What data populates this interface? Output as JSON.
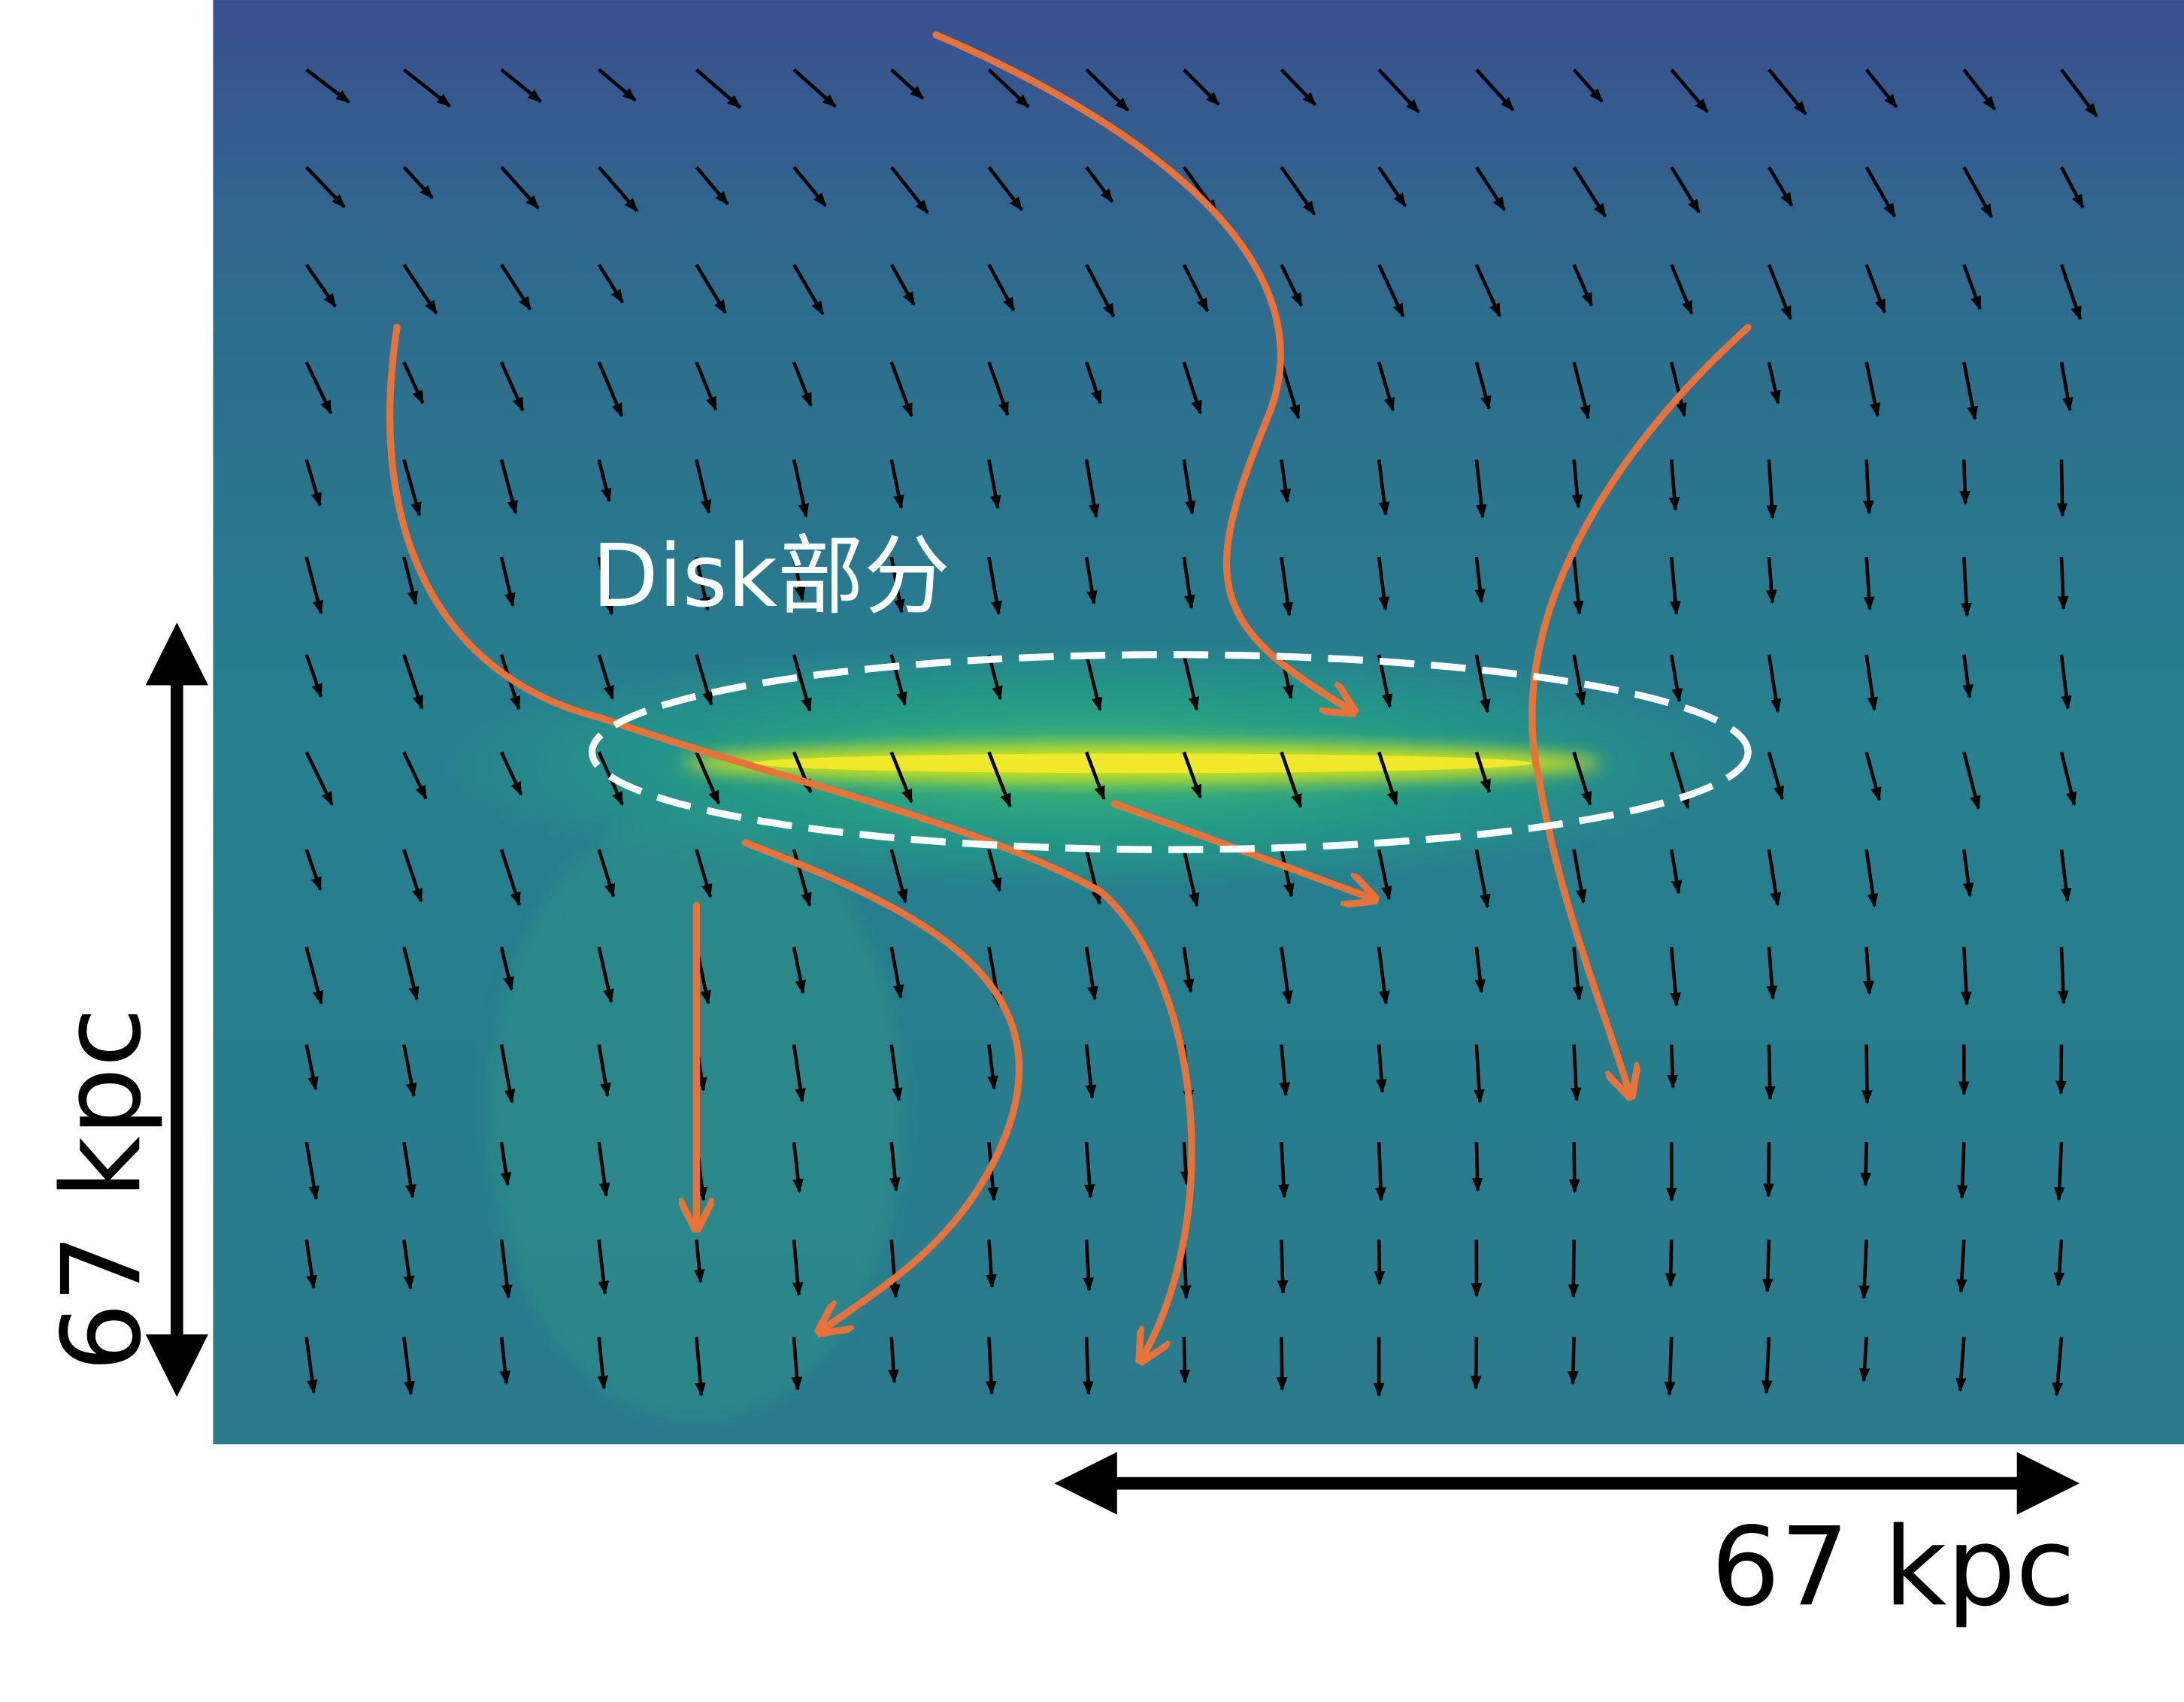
{
  "labels": {
    "disk": "Disk部分",
    "scale_vertical": "67 kpc",
    "scale_horizontal": "67 kpc"
  }
}
